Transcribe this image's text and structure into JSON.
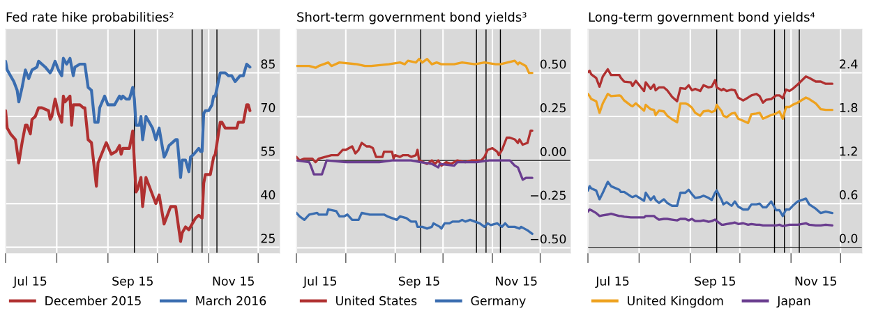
{
  "chart_data": [
    {
      "type": "line",
      "title": "Fed rate hike probabilities²",
      "legend": "bottom",
      "grid": true,
      "line_style": "solid",
      "xlim": [
        "2015-07-01",
        "2015-12-14"
      ],
      "xticks": [
        {
          "value": "2015-07-01",
          "label": null
        },
        {
          "value": "2015-07-16",
          "label": "Jul 15"
        },
        {
          "value": "2015-08-01",
          "label": null
        },
        {
          "value": "2015-09-01",
          "label": null
        },
        {
          "value": "2015-09-16",
          "label": "Sep 15"
        },
        {
          "value": "2015-10-01",
          "label": null
        },
        {
          "value": "2015-11-01",
          "label": null
        },
        {
          "value": "2015-11-16",
          "label": "Nov 15"
        },
        {
          "value": "2015-12-01",
          "label": null
        }
      ],
      "ylim": [
        23,
        100
      ],
      "yticks": [
        25,
        40,
        55,
        70,
        85
      ],
      "ref_lines": [
        {
          "axis": "x",
          "value": "2015-09-17",
          "color": "#000000"
        },
        {
          "axis": "x",
          "value": "2015-10-22",
          "color": "#000000"
        },
        {
          "axis": "x",
          "value": "2015-10-28",
          "color": "#000000"
        },
        {
          "axis": "x",
          "value": "2015-11-06",
          "color": "#000000"
        }
      ],
      "series": [
        {
          "name": "December 2015",
          "color": "#b03030",
          "x": [
            "2015-07-01",
            "2015-07-02",
            "2015-07-04",
            "2015-07-07",
            "2015-07-09",
            "2015-07-11",
            "2015-07-13",
            "2015-07-14",
            "2015-07-16",
            "2015-07-17",
            "2015-07-19",
            "2015-07-21",
            "2015-07-23",
            "2015-07-27",
            "2015-07-28",
            "2015-07-29",
            "2015-07-31",
            "2015-08-02",
            "2015-08-04",
            "2015-08-05",
            "2015-08-06",
            "2015-08-09",
            "2015-08-10",
            "2015-08-11",
            "2015-08-15",
            "2015-08-17",
            "2015-08-18",
            "2015-08-20",
            "2015-08-22",
            "2015-08-25",
            "2015-08-26",
            "2015-08-31",
            "2015-09-03",
            "2015-09-06",
            "2015-09-08",
            "2015-09-09",
            "2015-09-10",
            "2015-09-14",
            "2015-09-16",
            "2015-09-18",
            "2015-09-19",
            "2015-09-21",
            "2015-09-22",
            "2015-09-24",
            "2015-09-28",
            "2015-09-30",
            "2015-10-02",
            "2015-10-05",
            "2015-10-07",
            "2015-10-09",
            "2015-10-12",
            "2015-10-15",
            "2015-10-16",
            "2015-10-18",
            "2015-10-20",
            "2015-10-22",
            "2015-10-24",
            "2015-10-26",
            "2015-10-28",
            "2015-10-29",
            "2015-10-30",
            "2015-11-02",
            "2015-11-04",
            "2015-11-05",
            "2015-11-08",
            "2015-11-09",
            "2015-11-11",
            "2015-11-12",
            "2015-11-18",
            "2015-11-19",
            "2015-11-22",
            "2015-11-24",
            "2015-11-25",
            "2015-11-26"
          ],
          "values": [
            72,
            66,
            64,
            62,
            54,
            61,
            67,
            67,
            64,
            69,
            70,
            73,
            73,
            72,
            69,
            70,
            76,
            71,
            68,
            77,
            75,
            77,
            67,
            74,
            74,
            73,
            73,
            62,
            61,
            46,
            54,
            61,
            57,
            58,
            60,
            57,
            59,
            59,
            65,
            44,
            45,
            49,
            39,
            49,
            43,
            40,
            43,
            33,
            36,
            39,
            39,
            27,
            30,
            32,
            31,
            33,
            35,
            36,
            35,
            47,
            50,
            50,
            56,
            57,
            68,
            68,
            66,
            66,
            66,
            68,
            68,
            74,
            74,
            72
          ]
        },
        {
          "name": "March 2016",
          "color": "#3a6db0",
          "x": [
            "2015-07-01",
            "2015-07-02",
            "2015-07-04",
            "2015-07-06",
            "2015-07-08",
            "2015-07-09",
            "2015-07-11",
            "2015-07-13",
            "2015-07-15",
            "2015-07-17",
            "2015-07-20",
            "2015-07-21",
            "2015-07-23",
            "2015-07-25",
            "2015-07-28",
            "2015-07-29",
            "2015-07-31",
            "2015-08-02",
            "2015-08-04",
            "2015-08-05",
            "2015-08-07",
            "2015-08-09",
            "2015-08-10",
            "2015-08-11",
            "2015-08-12",
            "2015-08-15",
            "2015-08-17",
            "2015-08-18",
            "2015-08-20",
            "2015-08-22",
            "2015-08-24",
            "2015-08-26",
            "2015-08-27",
            "2015-08-30",
            "2015-09-01",
            "2015-09-02",
            "2015-09-05",
            "2015-09-06",
            "2015-09-08",
            "2015-09-09",
            "2015-09-10",
            "2015-09-12",
            "2015-09-14",
            "2015-09-16",
            "2015-09-17",
            "2015-09-18",
            "2015-09-20",
            "2015-09-21",
            "2015-09-22",
            "2015-09-24",
            "2015-09-28",
            "2015-09-30",
            "2015-10-02",
            "2015-10-05",
            "2015-10-06",
            "2015-10-08",
            "2015-10-10",
            "2015-10-12",
            "2015-10-13",
            "2015-10-15",
            "2015-10-16",
            "2015-10-18",
            "2015-10-20",
            "2015-10-21",
            "2015-10-23",
            "2015-10-26",
            "2015-10-27",
            "2015-10-28",
            "2015-10-29",
            "2015-10-30",
            "2015-11-01",
            "2015-11-03",
            "2015-11-04",
            "2015-11-05",
            "2015-11-08",
            "2015-11-09",
            "2015-11-11",
            "2015-11-13",
            "2015-11-15",
            "2015-11-17",
            "2015-11-20",
            "2015-11-22",
            "2015-11-24",
            "2015-11-26"
          ],
          "values": [
            89,
            86,
            84,
            82,
            79,
            75,
            80,
            86,
            83,
            86,
            87,
            89,
            88,
            87,
            85,
            86,
            89,
            86,
            84,
            90,
            88,
            90,
            87,
            84,
            87,
            88,
            88,
            88,
            80,
            79,
            68,
            68,
            73,
            77,
            74,
            74,
            74,
            75,
            77,
            76,
            77,
            76,
            76,
            80,
            76,
            67,
            67,
            70,
            62,
            70,
            66,
            62,
            66,
            56,
            57,
            60,
            61,
            62,
            62,
            49,
            55,
            55,
            51,
            56,
            57,
            59,
            58,
            58,
            71,
            72,
            72,
            74,
            77,
            77,
            85,
            85,
            85,
            84,
            84,
            82,
            84,
            84,
            88,
            87
          ]
        }
      ]
    },
    {
      "type": "line",
      "title": "Short-term government bond yields³",
      "legend": "bottom",
      "grid": true,
      "line_style": "solid",
      "xlim": [
        "2015-07-01",
        "2015-12-20"
      ],
      "xticks": [
        {
          "value": "2015-07-01",
          "label": null
        },
        {
          "value": "2015-07-16",
          "label": "Jul 15"
        },
        {
          "value": "2015-08-01",
          "label": null
        },
        {
          "value": "2015-09-01",
          "label": null
        },
        {
          "value": "2015-09-16",
          "label": "Sep 15"
        },
        {
          "value": "2015-10-01",
          "label": null
        },
        {
          "value": "2015-11-01",
          "label": null
        },
        {
          "value": "2015-11-16",
          "label": "Nov 15"
        },
        {
          "value": "2015-12-01",
          "label": null
        }
      ],
      "ylim": [
        -0.53,
        0.75
      ],
      "yticks": [
        {
          "value": -0.5,
          "label": "−0.50"
        },
        {
          "value": -0.25,
          "label": "−0.25"
        },
        {
          "value": 0,
          "label": "0.00"
        },
        {
          "value": 0.25,
          "label": "0.25"
        },
        {
          "value": 0.5,
          "label": "0.50"
        }
      ],
      "ref_lines": [
        {
          "axis": "y",
          "value": 0,
          "color": "#000000"
        },
        {
          "axis": "x",
          "value": "2015-09-17",
          "color": "#000000"
        },
        {
          "axis": "x",
          "value": "2015-10-22",
          "color": "#000000"
        },
        {
          "axis": "x",
          "value": "2015-10-28",
          "color": "#000000"
        },
        {
          "axis": "x",
          "value": "2015-11-06",
          "color": "#000000"
        }
      ],
      "series": [
        {
          "name": "United States",
          "color": "#b03030",
          "x": [
            "2015-07-01",
            "2015-07-03",
            "2015-07-06",
            "2015-07-11",
            "2015-07-13",
            "2015-07-15",
            "2015-07-19",
            "2015-07-23",
            "2015-07-27",
            "2015-07-30",
            "2015-08-01",
            "2015-08-05",
            "2015-08-07",
            "2015-08-09",
            "2015-08-11",
            "2015-08-14",
            "2015-08-16",
            "2015-08-18",
            "2015-08-20",
            "2015-08-24",
            "2015-08-25",
            "2015-08-30",
            "2015-08-31",
            "2015-09-01",
            "2015-09-04",
            "2015-09-06",
            "2015-09-09",
            "2015-09-11",
            "2015-09-14",
            "2015-09-15",
            "2015-09-16",
            "2015-09-21",
            "2015-09-24",
            "2015-09-26",
            "2015-09-28",
            "2015-09-30",
            "2015-10-03",
            "2015-10-06",
            "2015-10-10",
            "2015-10-15",
            "2015-10-19",
            "2015-10-22",
            "2015-10-25",
            "2015-10-27",
            "2015-10-29",
            "2015-11-01",
            "2015-11-04",
            "2015-11-05",
            "2015-11-07",
            "2015-11-10",
            "2015-11-12",
            "2015-11-15",
            "2015-11-17",
            "2015-11-18",
            "2015-11-20",
            "2015-11-23",
            "2015-11-25",
            "2015-11-26"
          ],
          "values": [
            0.02,
            0.0,
            0.01,
            0.01,
            -0.01,
            0.01,
            0.02,
            0.03,
            0.03,
            0.06,
            0.06,
            0.08,
            0.04,
            0.06,
            0.1,
            0.08,
            0.08,
            0.07,
            0.02,
            0.02,
            0.05,
            0.05,
            0.01,
            0.03,
            0.02,
            0.03,
            0.03,
            0.02,
            0.03,
            0.06,
            0.0,
            -0.02,
            0.0,
            -0.02,
            0.0,
            -0.03,
            -0.01,
            -0.02,
            0.0,
            -0.01,
            0.0,
            0.0,
            0.0,
            0.02,
            0.06,
            0.07,
            0.05,
            0.03,
            0.06,
            0.13,
            0.13,
            0.12,
            0.1,
            0.12,
            0.09,
            0.1,
            0.17,
            0.17
          ]
        },
        {
          "name": "Germany",
          "color": "#3a6db0",
          "x": [
            "2015-07-01",
            "2015-07-03",
            "2015-07-06",
            "2015-07-09",
            "2015-07-14",
            "2015-07-15",
            "2015-07-17",
            "2015-07-20",
            "2015-07-21",
            "2015-07-26",
            "2015-07-28",
            "2015-07-31",
            "2015-08-02",
            "2015-08-05",
            "2015-08-09",
            "2015-08-11",
            "2015-08-16",
            "2015-08-22",
            "2015-08-25",
            "2015-08-27",
            "2015-09-02",
            "2015-09-04",
            "2015-09-08",
            "2015-09-11",
            "2015-09-14",
            "2015-09-15",
            "2015-09-18",
            "2015-09-21",
            "2015-09-24",
            "2015-09-25",
            "2015-09-29",
            "2015-09-30",
            "2015-10-02",
            "2015-10-05",
            "2015-10-07",
            "2015-10-11",
            "2015-10-13",
            "2015-10-15",
            "2015-10-18",
            "2015-10-21",
            "2015-10-24",
            "2015-10-27",
            "2015-10-29",
            "2015-10-31",
            "2015-11-04",
            "2015-11-07",
            "2015-11-09",
            "2015-11-11",
            "2015-11-15",
            "2015-11-18",
            "2015-11-19",
            "2015-11-21",
            "2015-11-23",
            "2015-11-26"
          ],
          "values": [
            -0.3,
            -0.32,
            -0.34,
            -0.31,
            -0.3,
            -0.31,
            -0.31,
            -0.31,
            -0.28,
            -0.29,
            -0.32,
            -0.32,
            -0.31,
            -0.34,
            -0.34,
            -0.3,
            -0.31,
            -0.31,
            -0.31,
            -0.32,
            -0.34,
            -0.32,
            -0.33,
            -0.35,
            -0.35,
            -0.38,
            -0.38,
            -0.39,
            -0.38,
            -0.36,
            -0.38,
            -0.39,
            -0.36,
            -0.36,
            -0.35,
            -0.35,
            -0.34,
            -0.35,
            -0.34,
            -0.35,
            -0.36,
            -0.38,
            -0.36,
            -0.37,
            -0.36,
            -0.38,
            -0.36,
            -0.38,
            -0.38,
            -0.39,
            -0.38,
            -0.39,
            -0.4,
            -0.42
          ]
        },
        {
          "color": "#eea21f",
          "x": [
            "2015-07-01",
            "2015-07-09",
            "2015-07-13",
            "2015-07-15",
            "2015-07-21",
            "2015-07-23",
            "2015-07-28",
            "2015-08-08",
            "2015-08-13",
            "2015-08-17",
            "2015-08-28",
            "2015-09-04",
            "2015-09-07",
            "2015-09-09",
            "2015-09-14",
            "2015-09-16",
            "2015-09-18",
            "2015-09-21",
            "2015-09-24",
            "2015-09-27",
            "2015-09-30",
            "2015-10-08",
            "2015-10-13",
            "2015-10-21",
            "2015-10-27",
            "2015-11-03",
            "2015-11-06",
            "2015-11-15",
            "2015-11-17",
            "2015-11-18",
            "2015-11-22",
            "2015-11-24",
            "2015-11-26"
          ],
          "values": [
            0.54,
            0.54,
            0.53,
            0.54,
            0.56,
            0.54,
            0.56,
            0.55,
            0.54,
            0.54,
            0.55,
            0.56,
            0.55,
            0.57,
            0.56,
            0.58,
            0.56,
            0.58,
            0.55,
            0.56,
            0.55,
            0.55,
            0.56,
            0.55,
            0.56,
            0.55,
            0.55,
            0.57,
            0.55,
            0.56,
            0.54,
            0.5,
            0.5
          ]
        },
        {
          "color": "#6a3d8f",
          "x": [
            "2015-07-01",
            "2015-07-09",
            "2015-07-10",
            "2015-07-12",
            "2015-07-17",
            "2015-07-20",
            "2015-08-01",
            "2015-08-10",
            "2015-08-22",
            "2015-08-30",
            "2015-09-11",
            "2015-09-17",
            "2015-09-24",
            "2015-09-28",
            "2015-09-29",
            "2015-10-08",
            "2015-10-10",
            "2015-10-22",
            "2015-10-30",
            "2015-11-12",
            "2015-11-15",
            "2015-11-17",
            "2015-11-20",
            "2015-11-22",
            "2015-11-26"
          ],
          "values": [
            0.0,
            -0.01,
            -0.03,
            -0.08,
            -0.08,
            0.0,
            -0.01,
            -0.01,
            -0.01,
            0.0,
            0.0,
            -0.01,
            -0.02,
            -0.04,
            -0.02,
            -0.03,
            -0.01,
            -0.01,
            0.0,
            0.0,
            -0.03,
            -0.04,
            -0.11,
            -0.1,
            -0.1
          ]
        }
      ]
    },
    {
      "type": "line",
      "title": "Long-term government bond yields⁴",
      "legend": "bottom",
      "grid": true,
      "line_style": "solid",
      "xlim": [
        "2015-07-01",
        "2015-12-14"
      ],
      "xticks": [
        {
          "value": "2015-07-01",
          "label": null
        },
        {
          "value": "2015-07-16",
          "label": "Jul 15"
        },
        {
          "value": "2015-08-01",
          "label": null
        },
        {
          "value": "2015-09-01",
          "label": null
        },
        {
          "value": "2015-09-16",
          "label": "Sep 15"
        },
        {
          "value": "2015-10-01",
          "label": null
        },
        {
          "value": "2015-11-01",
          "label": null
        },
        {
          "value": "2015-11-16",
          "label": "Nov 15"
        },
        {
          "value": "2015-12-01",
          "label": null
        }
      ],
      "ylim": [
        -0.08,
        3.0
      ],
      "yticks": [
        {
          "value": 0,
          "label": "0.0"
        },
        {
          "value": 0.6,
          "label": "0.6"
        },
        {
          "value": 1.2,
          "label": "1.2"
        },
        {
          "value": 1.8,
          "label": "1.8"
        },
        {
          "value": 2.4,
          "label": "2.4"
        }
      ],
      "ref_lines": [
        {
          "axis": "y",
          "value": 0,
          "color": "#000000"
        },
        {
          "axis": "x",
          "value": "2015-09-17",
          "color": "#000000"
        },
        {
          "axis": "x",
          "value": "2015-10-22",
          "color": "#000000"
        },
        {
          "axis": "x",
          "value": "2015-10-28",
          "color": "#000000"
        },
        {
          "axis": "x",
          "value": "2015-11-06",
          "color": "#000000"
        }
      ],
      "x": [
        "2015-07-01",
        "2015-07-02",
        "2015-07-03",
        "2015-07-06",
        "2015-07-08",
        "2015-07-10",
        "2015-07-13",
        "2015-07-15",
        "2015-07-20",
        "2015-07-21",
        "2015-07-23",
        "2015-07-27",
        "2015-07-28",
        "2015-07-30",
        "2015-08-04",
        "2015-08-05",
        "2015-08-08",
        "2015-08-10",
        "2015-08-11",
        "2015-08-13",
        "2015-08-16",
        "2015-08-18",
        "2015-08-21",
        "2015-08-24",
        "2015-08-26",
        "2015-08-29",
        "2015-08-31",
        "2015-09-02",
        "2015-09-04",
        "2015-09-07",
        "2015-09-09",
        "2015-09-12",
        "2015-09-14",
        "2015-09-16",
        "2015-09-17",
        "2015-09-20",
        "2015-09-21",
        "2015-09-23",
        "2015-09-26",
        "2015-09-28",
        "2015-09-30",
        "2015-10-03",
        "2015-10-06",
        "2015-10-08",
        "2015-10-11",
        "2015-10-13",
        "2015-10-15",
        "2015-10-17",
        "2015-10-20",
        "2015-10-23",
        "2015-10-25",
        "2015-10-27",
        "2015-10-29",
        "2015-10-31",
        "2015-11-02",
        "2015-11-05",
        "2015-11-10",
        "2015-11-12",
        "2015-11-16",
        "2015-11-19",
        "2015-11-22",
        "2015-11-26"
      ],
      "series": [
        {
          "color": "#b03030",
          "values": [
            2.41,
            2.43,
            2.38,
            2.33,
            2.21,
            2.35,
            2.45,
            2.37,
            2.37,
            2.33,
            2.28,
            2.27,
            2.22,
            2.29,
            2.15,
            2.27,
            2.18,
            2.24,
            2.16,
            2.2,
            2.2,
            2.16,
            2.07,
            2.01,
            2.19,
            2.18,
            2.23,
            2.16,
            2.18,
            2.15,
            2.23,
            2.2,
            2.21,
            2.3,
            2.2,
            2.16,
            2.18,
            2.15,
            2.17,
            2.16,
            2.06,
            2.02,
            2.06,
            2.09,
            2.11,
            2.08,
            1.99,
            2.03,
            2.04,
            2.09,
            2.09,
            2.05,
            2.17,
            2.15,
            2.18,
            2.24,
            2.35,
            2.33,
            2.28,
            2.28,
            2.25,
            2.25
          ]
        },
        {
          "color": "#3a6db0",
          "values": [
            0.78,
            0.84,
            0.81,
            0.78,
            0.66,
            0.75,
            0.9,
            0.84,
            0.79,
            0.76,
            0.76,
            0.7,
            0.69,
            0.71,
            0.64,
            0.75,
            0.65,
            0.7,
            0.65,
            0.61,
            0.66,
            0.61,
            0.57,
            0.57,
            0.75,
            0.75,
            0.79,
            0.73,
            0.68,
            0.69,
            0.71,
            0.68,
            0.65,
            0.75,
            0.78,
            0.65,
            0.59,
            0.62,
            0.57,
            0.63,
            0.56,
            0.52,
            0.52,
            0.59,
            0.59,
            0.6,
            0.55,
            0.55,
            0.63,
            0.51,
            0.51,
            0.43,
            0.52,
            0.52,
            0.57,
            0.63,
            0.67,
            0.59,
            0.53,
            0.47,
            0.49,
            0.47
          ]
        },
        {
          "name": "United Kingdom",
          "color": "#eea21f",
          "values": [
            2.11,
            2.08,
            2.04,
            2.01,
            1.85,
            1.98,
            2.11,
            2.08,
            2.09,
            2.08,
            2.02,
            1.95,
            1.94,
            1.98,
            1.88,
            1.96,
            1.9,
            1.89,
            1.82,
            1.88,
            1.87,
            1.81,
            1.76,
            1.72,
            1.98,
            1.98,
            1.96,
            1.92,
            1.85,
            1.81,
            1.87,
            1.88,
            1.86,
            1.88,
            1.96,
            1.87,
            1.81,
            1.79,
            1.84,
            1.85,
            1.77,
            1.74,
            1.71,
            1.83,
            1.84,
            1.85,
            1.77,
            1.79,
            1.82,
            1.84,
            1.87,
            1.77,
            1.93,
            1.93,
            1.96,
            1.99,
            2.06,
            2.04,
            1.98,
            1.9,
            1.89,
            1.89
          ]
        },
        {
          "name": "Japan",
          "color": "#6a3d8f",
          "values": [
            0.49,
            0.52,
            0.51,
            0.47,
            0.43,
            0.44,
            0.45,
            0.46,
            0.43,
            0.43,
            0.42,
            0.41,
            0.41,
            0.41,
            0.41,
            0.43,
            0.43,
            0.43,
            0.41,
            0.38,
            0.39,
            0.39,
            0.38,
            0.37,
            0.39,
            0.39,
            0.37,
            0.39,
            0.36,
            0.36,
            0.37,
            0.35,
            0.36,
            0.38,
            0.36,
            0.31,
            0.31,
            0.32,
            0.33,
            0.34,
            0.32,
            0.33,
            0.31,
            0.32,
            0.31,
            0.31,
            0.3,
            0.3,
            0.3,
            0.3,
            0.31,
            0.29,
            0.3,
            0.31,
            0.31,
            0.31,
            0.33,
            0.31,
            0.3,
            0.3,
            0.31,
            0.3
          ]
        }
      ]
    }
  ]
}
